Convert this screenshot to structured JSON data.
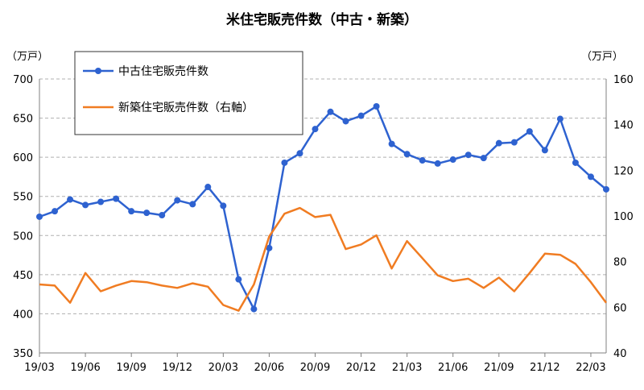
{
  "chart_data": {
    "type": "line",
    "title": "米住宅販売件数（中古・新築）",
    "left_unit": "（万戸）",
    "right_unit": "（万戸）",
    "y_left": {
      "min": 350,
      "max": 700,
      "ticks": [
        350,
        400,
        450,
        500,
        550,
        600,
        650,
        700
      ]
    },
    "y_right": {
      "min": 40,
      "max": 160,
      "ticks": [
        40,
        60,
        80,
        100,
        120,
        140,
        160
      ]
    },
    "x_tick_labels": [
      "19/03",
      "19/06",
      "19/09",
      "19/12",
      "20/03",
      "20/06",
      "20/09",
      "20/12",
      "21/03",
      "21/06",
      "21/09",
      "21/12",
      "22/03"
    ],
    "grid": true,
    "legend_position": "top-left",
    "series": [
      {
        "name": "中古住宅販売件数",
        "axis": "left",
        "color": "#2E62D0",
        "marker": "circle",
        "values": [
          524,
          531,
          546,
          539,
          543,
          547,
          531,
          529,
          526,
          545,
          540,
          562,
          538,
          444,
          406,
          484,
          593,
          605,
          636,
          658,
          646,
          653,
          665,
          617,
          604,
          596,
          592,
          597,
          603,
          599,
          618,
          619,
          633,
          609,
          649,
          593,
          575,
          559
        ]
      },
      {
        "name": "新築住宅販売件数（右軸）",
        "axis": "right",
        "color": "#F07C22",
        "marker": "none",
        "values": [
          70,
          69.5,
          62,
          75,
          67,
          69.5,
          71.5,
          71,
          69.5,
          68.5,
          70.5,
          69,
          61,
          58.5,
          70,
          91,
          101,
          103.5,
          99.5,
          100.5,
          85.5,
          87.5,
          91.5,
          77,
          89,
          81.5,
          74,
          71.5,
          72.5,
          68.5,
          73,
          67,
          75,
          83.5,
          83,
          79,
          71,
          62
        ]
      }
    ]
  }
}
